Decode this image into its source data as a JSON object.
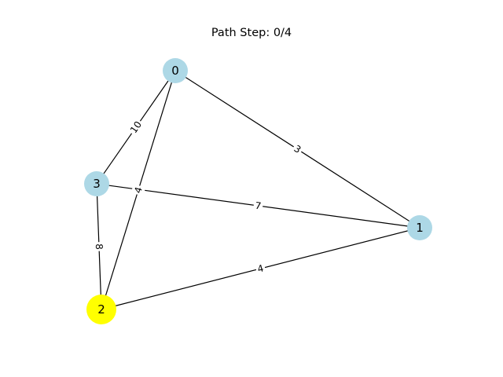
{
  "title": "Path Step: 0/4",
  "colors": {
    "node_default": "#add8e6",
    "node_active": "#ffff00",
    "edge": "#000000"
  },
  "graph": {
    "nodes": [
      {
        "id": "0",
        "label": "0",
        "active": false
      },
      {
        "id": "1",
        "label": "1",
        "active": false
      },
      {
        "id": "2",
        "label": "2",
        "active": true
      },
      {
        "id": "3",
        "label": "3",
        "active": false
      }
    ],
    "edges": [
      {
        "from": "0",
        "to": "3",
        "weight": "10"
      },
      {
        "from": "0",
        "to": "1",
        "weight": "3"
      },
      {
        "from": "0",
        "to": "2",
        "weight": "4"
      },
      {
        "from": "3",
        "to": "1",
        "weight": "7"
      },
      {
        "from": "3",
        "to": "2",
        "weight": "8"
      },
      {
        "from": "2",
        "to": "1",
        "weight": "4"
      }
    ]
  }
}
